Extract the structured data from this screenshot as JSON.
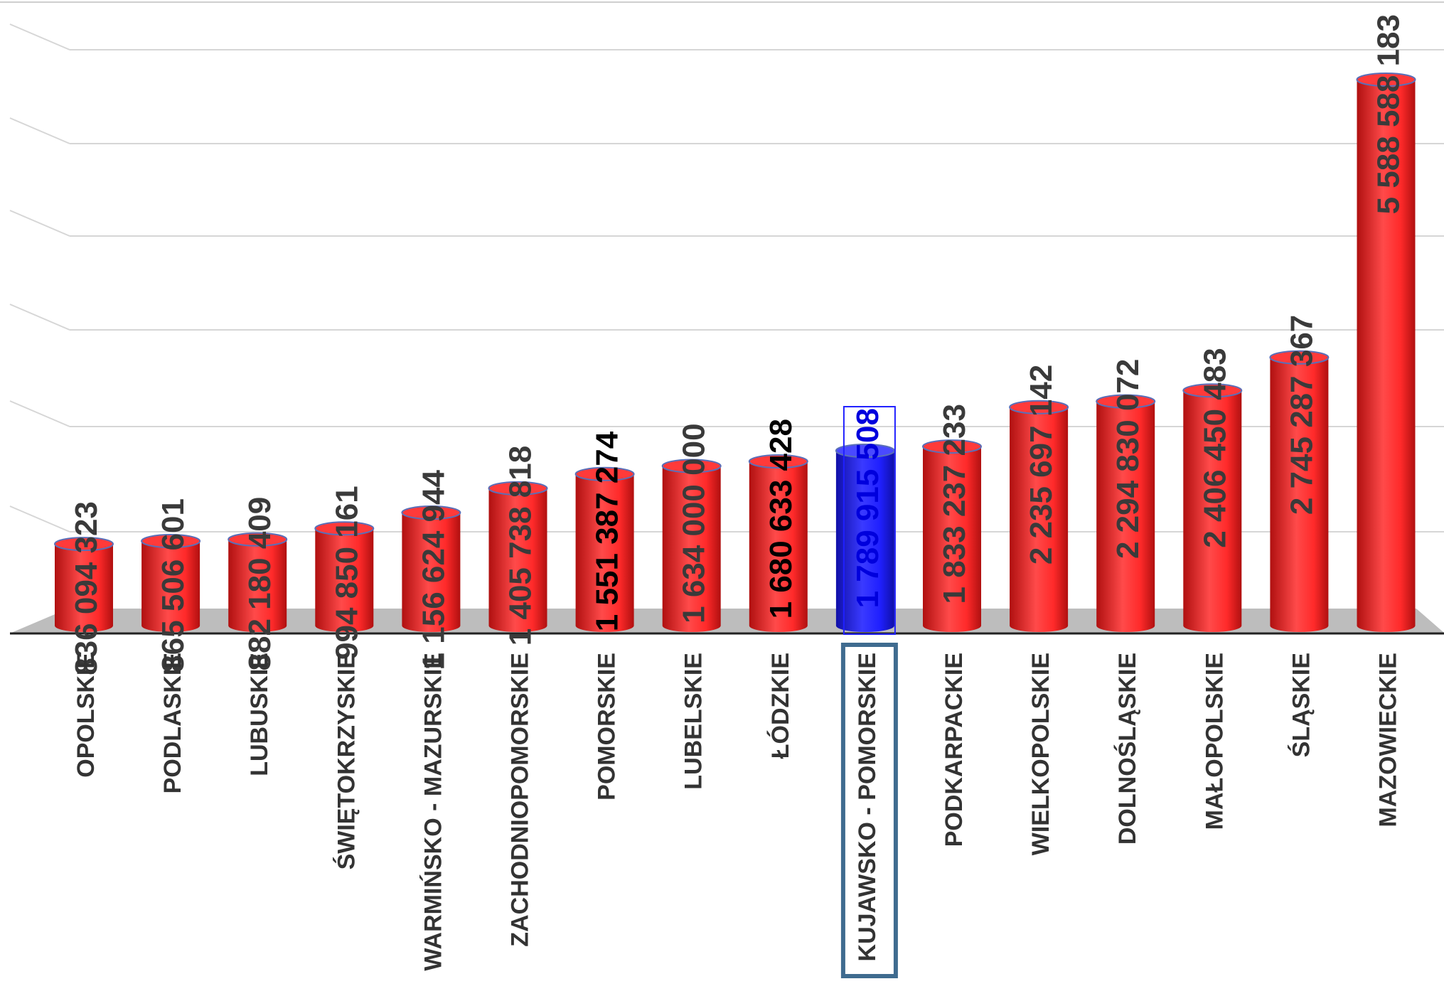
{
  "chart_data": {
    "type": "bar",
    "style": "3d-cylinder",
    "title": "",
    "xlabel": "",
    "ylabel": "",
    "ylim": [
      0,
      6000000000
    ],
    "grid": true,
    "legend": "none",
    "categories": [
      "OPOLSKIE",
      "PODLASKIE",
      "LUBUSKIE",
      "ŚWIĘTOKRZYSKIE",
      "WARMIŃSKO - MAZURSKIE",
      "ZACHODNIOPOMORSKIE",
      "POMORSKIE",
      "LUBELSKIE",
      "ŁÓDZKIE",
      "KUJAWSKO - POMORSKIE",
      "PODKARPACKIE",
      "WIELKOPOLSKIE",
      "DOLNOŚLĄSKIE",
      "MAŁOPOLSKIE",
      "ŚLĄSKIE",
      "MAZOWIECKIE"
    ],
    "values": [
      836094323,
      865506601,
      882180409,
      994850161,
      1156624944,
      1405738818,
      1551387274,
      1634000000,
      1680633428,
      1789915508,
      1833237233,
      2235697142,
      2294830072,
      2406450483,
      2745287367,
      5588588183
    ],
    "value_labels": [
      "836 094 323",
      "865 506 601",
      "882 180 409",
      "994 850 161",
      "1 156 624 944",
      "1 405 738 818",
      "1 551 387 274",
      "1 634 000 000",
      "1 680 633 428",
      "1 789 915 508",
      "1 833 237 233",
      "2 235 697 142",
      "2 294 830 072",
      "2 406 450 483",
      "2 745 287 367",
      "5 588 588 183"
    ],
    "highlight_index": 9,
    "colors": {
      "bar": "#ff2a2a",
      "bar_dark": "#b01010",
      "highlight": "#2020ff",
      "highlight_dark": "#1010a8",
      "label": "#3a3a3a",
      "label_emphasis": "#000000",
      "label_highlight": "#0000dd",
      "floor": "#bdbdbd",
      "grid": "#d6d6d6",
      "category_box": "#3f6b8f"
    },
    "emphasized_labels": [
      6,
      8
    ]
  }
}
